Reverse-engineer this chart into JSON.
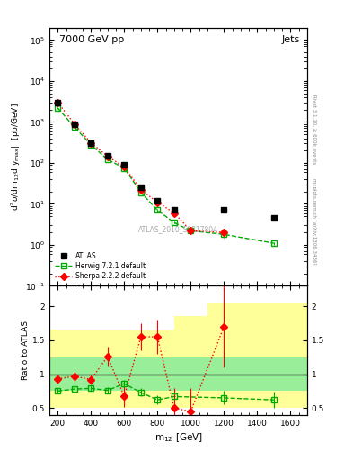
{
  "title_left": "7000 GeV pp",
  "title_right": "Jets",
  "ylabel_main": "d$^2\\sigma$/dm$_{12}$d|y$_{\\rm max}$|  [pb/GeV]",
  "ylabel_ratio": "Ratio to ATLAS",
  "xlabel": "m$_{12}$ [GeV]",
  "watermark": "ATLAS_2010_S8817804",
  "rivet_label": "Rivet 3.1.10, ≥ 600k events",
  "mcplots_label": "mcplots.cern.ch [arXiv:1306.3436]",
  "atlas_x": [
    200,
    300,
    400,
    500,
    600,
    700,
    800,
    900,
    1200,
    1500
  ],
  "atlas_y": [
    3000,
    900,
    300,
    150,
    90,
    25,
    12,
    7,
    7,
    4.5
  ],
  "atlas_yerr": [
    200,
    60,
    20,
    10,
    6,
    2,
    1.2,
    0.7,
    0.7,
    0.5
  ],
  "herwig_x": [
    200,
    300,
    400,
    500,
    600,
    700,
    800,
    900,
    1000,
    1200,
    1500
  ],
  "herwig_y": [
    2200,
    750,
    280,
    120,
    75,
    19,
    7,
    3.5,
    2.2,
    1.8,
    1.1
  ],
  "herwig_yerr": [
    100,
    40,
    15,
    6,
    4,
    1,
    0.4,
    0.2,
    0.15,
    0.12,
    0.08
  ],
  "sherpa_x": [
    200,
    300,
    400,
    500,
    600,
    700,
    800,
    900,
    1000,
    1200
  ],
  "sherpa_y": [
    3000,
    900,
    310,
    145,
    80,
    22,
    11,
    6,
    2.2,
    2.0
  ],
  "sherpa_yerr": [
    150,
    50,
    18,
    8,
    5,
    1.5,
    1,
    0.6,
    0.4,
    0.5
  ],
  "herwig_ratio_x": [
    200,
    300,
    400,
    500,
    600,
    700,
    800,
    900,
    1200,
    1500
  ],
  "herwig_ratio_y": [
    0.75,
    0.78,
    0.79,
    0.76,
    0.86,
    0.73,
    0.62,
    0.67,
    0.65,
    0.62
  ],
  "herwig_ratio_yerr": [
    0.04,
    0.04,
    0.04,
    0.05,
    0.05,
    0.06,
    0.07,
    0.08,
    0.1,
    0.12
  ],
  "sherpa_ratio_x": [
    200,
    300,
    400,
    500,
    600,
    700,
    800,
    900,
    1000,
    1200
  ],
  "sherpa_ratio_y": [
    0.93,
    0.97,
    0.92,
    1.26,
    0.67,
    1.55,
    1.55,
    0.5,
    0.45,
    1.7
  ],
  "sherpa_ratio_yerr": [
    0.05,
    0.07,
    0.07,
    0.15,
    0.15,
    0.2,
    0.25,
    0.3,
    0.35,
    0.6
  ],
  "band_edges": [
    150,
    300,
    500,
    700,
    900,
    1100,
    1700
  ],
  "band_yellow_lo": [
    0.5,
    0.5,
    0.5,
    0.5,
    0.5,
    0.5,
    0.5
  ],
  "band_yellow_hi": [
    1.65,
    1.65,
    1.65,
    1.65,
    1.85,
    2.05,
    2.2
  ],
  "band_green_lo": [
    0.75,
    0.75,
    0.75,
    0.75,
    0.75,
    0.75,
    0.75
  ],
  "band_green_hi": [
    1.25,
    1.25,
    1.25,
    1.25,
    1.25,
    1.25,
    1.25
  ],
  "atlas_color": "black",
  "herwig_color": "#00aa00",
  "sherpa_color": "red",
  "bg_color": "white",
  "ylim_main": [
    0.1,
    200000
  ],
  "ylim_ratio": [
    0.4,
    2.3
  ],
  "xlim": [
    150,
    1700
  ]
}
